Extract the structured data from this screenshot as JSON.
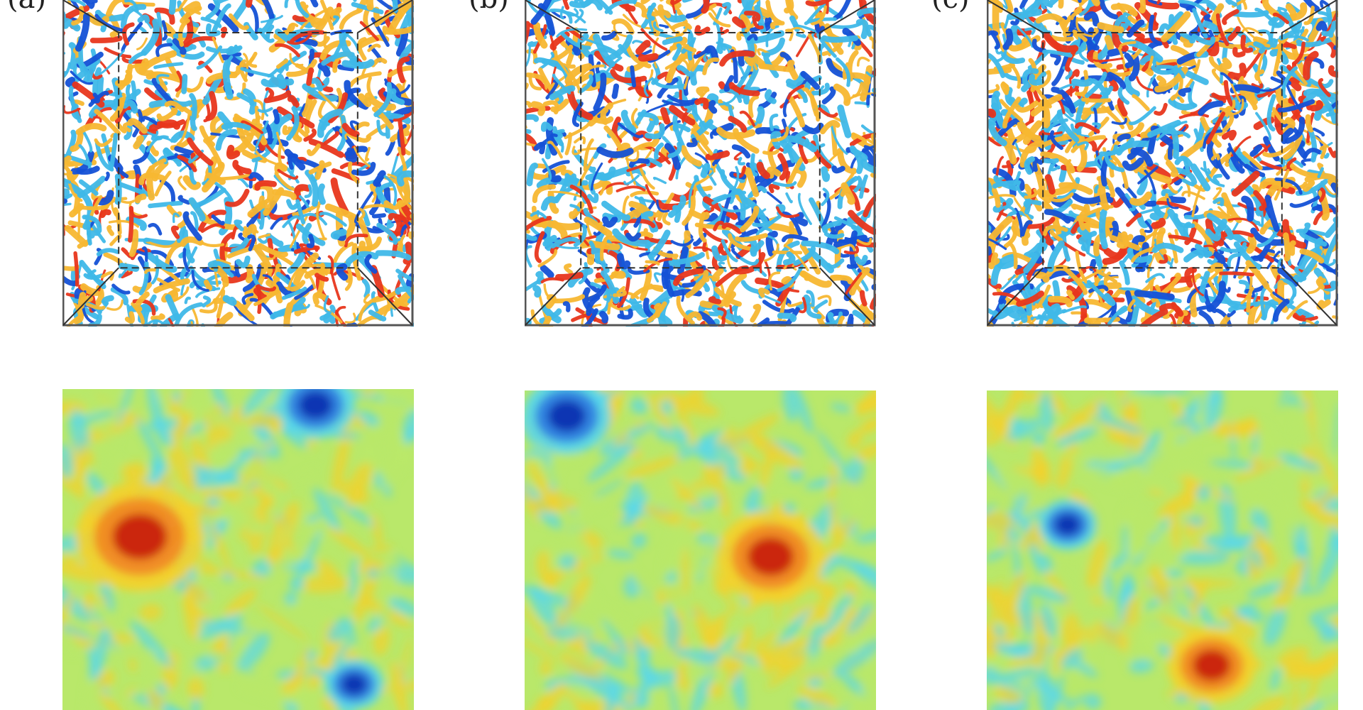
{
  "figure": {
    "panel_labels": [
      "(a)",
      "(b)",
      "(c)"
    ],
    "colors": {
      "vort_pos_strong": "#e8361c",
      "vort_pos_weak": "#f7b731",
      "vort_neg_strong": "#1451d6",
      "vort_neg_weak": "#3fb8e8",
      "field_high": "#c8200e",
      "field_mid_high": "#f5d02a",
      "field_mid": "#b9e86a",
      "field_low": "#55d7ee",
      "field_very_low": "#0b2fb0"
    }
  }
}
